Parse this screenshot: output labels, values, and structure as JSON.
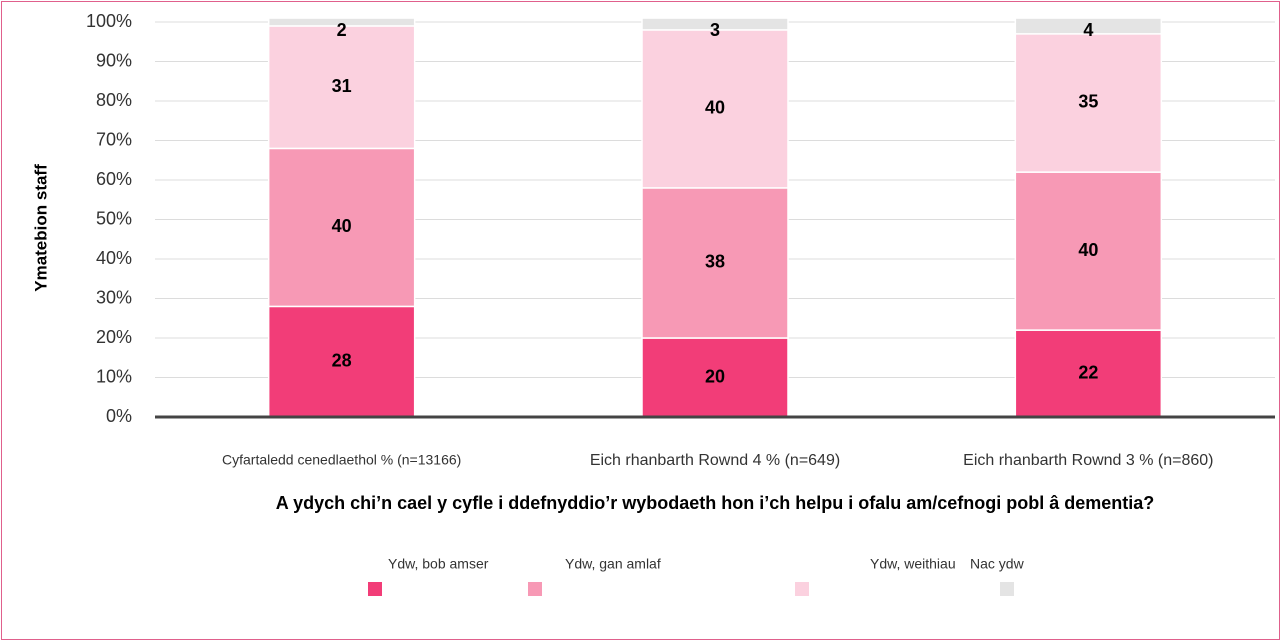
{
  "chart_data": {
    "type": "stacked_bar",
    "y_label": "Ymatebion staff",
    "x_label": "A ydych chi’n cael y cyfle i ddefnyddio’r wybodaeth hon i’ch helpu i ofalu am/cefnogi pobl â dementia?",
    "categories": [
      "Cyfartaledd cenedlaethol % (n=13166)",
      "Eich rhanbarth Rownd 4 %  (n=649)",
      "Eich rhanbarth Rownd 3 % (n=860)"
    ],
    "series": [
      {
        "name": "Ydw, bob amser",
        "color": "#f23d78",
        "values": [
          28,
          20,
          22
        ]
      },
      {
        "name": "Ydw, gan amlaf",
        "color": "#f799b5",
        "values": [
          40,
          38,
          40
        ]
      },
      {
        "name": "Ydw, weithiau",
        "color": "#fbd1df",
        "values": [
          31,
          40,
          35
        ]
      },
      {
        "name": "Nac ydw",
        "color": "#e4e4e4",
        "values": [
          2,
          3,
          4
        ]
      }
    ],
    "ylim": [
      0,
      100
    ],
    "yticks": [
      {
        "value": 0,
        "label": "0%"
      },
      {
        "value": 10,
        "label": "10%"
      },
      {
        "value": 20,
        "label": "20%"
      },
      {
        "value": 30,
        "label": "30%"
      },
      {
        "value": 40,
        "label": "40%"
      },
      {
        "value": 50,
        "label": "50%"
      },
      {
        "value": 60,
        "label": "60%"
      },
      {
        "value": 70,
        "label": "70%"
      },
      {
        "value": 80,
        "label": "80%"
      },
      {
        "value": 90,
        "label": "90%"
      },
      {
        "value": 100,
        "label": "100%"
      }
    ],
    "grid": true
  }
}
